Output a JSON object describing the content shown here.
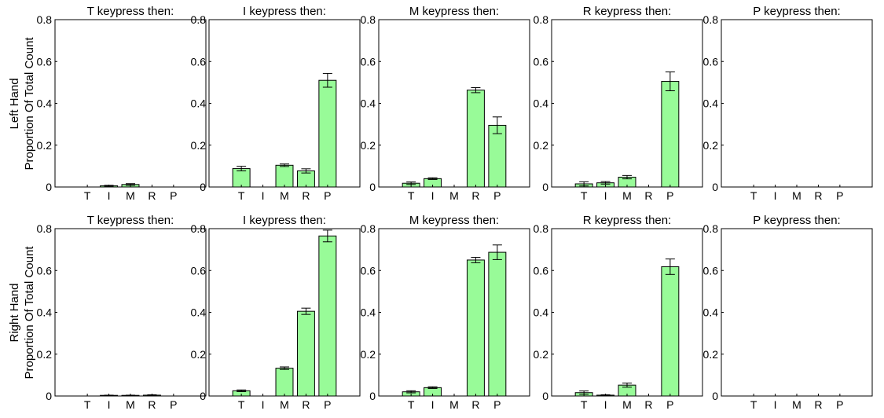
{
  "ylabels": {
    "left": [
      "Left Hand",
      "Proportion Of Total Count"
    ],
    "right": [
      "Right Hand",
      "Proportion Of Total Count"
    ]
  },
  "chart_data": [
    {
      "type": "bar",
      "hand": "Left Hand",
      "title": "T keypress then:",
      "categories": [
        "T",
        "I",
        "M",
        "R",
        "P"
      ],
      "values": [
        0,
        0.006,
        0.012,
        0,
        0
      ],
      "errors": [
        0,
        0.002,
        0.004,
        0,
        0
      ],
      "ylim": [
        0,
        0.8
      ],
      "yticks": [
        0,
        0.2,
        0.4,
        0.6,
        0.8
      ],
      "ytick_labels": [
        "0",
        "0.2",
        "0.4",
        "0.6",
        "0.8"
      ],
      "bar_color": "#98fb98",
      "edge_color": "#000000",
      "grid": false
    },
    {
      "type": "bar",
      "hand": "Left Hand",
      "title": "I keypress then:",
      "categories": [
        "T",
        "I",
        "M",
        "R",
        "P"
      ],
      "values": [
        0.088,
        0,
        0.104,
        0.077,
        0.51
      ],
      "errors": [
        0.011,
        0,
        0.006,
        0.01,
        0.033
      ],
      "ylim": [
        0,
        0.8
      ],
      "yticks": [
        0,
        0.2,
        0.4,
        0.6,
        0.8
      ],
      "ytick_labels": [
        "0",
        "0.2",
        "0.4",
        "0.6",
        "0.8"
      ],
      "bar_color": "#98fb98",
      "edge_color": "#000000",
      "grid": false
    },
    {
      "type": "bar",
      "hand": "Left Hand",
      "title": "M keypress then:",
      "categories": [
        "T",
        "I",
        "M",
        "R",
        "P"
      ],
      "values": [
        0.018,
        0.04,
        0,
        0.463,
        0.295
      ],
      "errors": [
        0.006,
        0.004,
        0,
        0.012,
        0.04
      ],
      "ylim": [
        0,
        0.8
      ],
      "yticks": [
        0,
        0.2,
        0.4,
        0.6,
        0.8
      ],
      "ytick_labels": [
        "0",
        "0.2",
        "0.4",
        "0.6",
        "0.8"
      ],
      "bar_color": "#98fb98",
      "edge_color": "#000000",
      "grid": false
    },
    {
      "type": "bar",
      "hand": "Left Hand",
      "title": "R keypress then:",
      "categories": [
        "T",
        "I",
        "M",
        "R",
        "P"
      ],
      "values": [
        0.015,
        0.02,
        0.047,
        0,
        0.505
      ],
      "errors": [
        0.01,
        0.006,
        0.008,
        0,
        0.045
      ],
      "ylim": [
        0,
        0.8
      ],
      "yticks": [
        0,
        0.2,
        0.4,
        0.6,
        0.8
      ],
      "ytick_labels": [
        "0",
        "0.2",
        "0.4",
        "0.6",
        "0.8"
      ],
      "bar_color": "#98fb98",
      "edge_color": "#000000",
      "grid": false
    },
    {
      "type": "bar",
      "hand": "Left Hand",
      "title": "P keypress then:",
      "categories": [
        "T",
        "I",
        "M",
        "R",
        "P"
      ],
      "values": [
        0,
        0,
        0,
        0,
        0
      ],
      "errors": [
        0,
        0,
        0,
        0,
        0
      ],
      "ylim": [
        0,
        0.8
      ],
      "yticks": [
        0,
        0.2,
        0.4,
        0.6,
        0.8
      ],
      "ytick_labels": [
        "0",
        "0.2",
        "0.4",
        "0.6",
        "0.8"
      ],
      "bar_color": "#98fb98",
      "edge_color": "#000000",
      "grid": false
    },
    {
      "type": "bar",
      "hand": "Right Hand",
      "title": "T keypress then:",
      "categories": [
        "T",
        "I",
        "M",
        "R",
        "P"
      ],
      "values": [
        0,
        0.003,
        0.003,
        0.004,
        0
      ],
      "errors": [
        0,
        0.001,
        0.001,
        0.002,
        0
      ],
      "ylim": [
        0,
        0.8
      ],
      "yticks": [
        0,
        0.2,
        0.4,
        0.6,
        0.8
      ],
      "ytick_labels": [
        "0",
        "0.2",
        "0.4",
        "0.6",
        "0.8"
      ],
      "bar_color": "#98fb98",
      "edge_color": "#000000",
      "grid": false
    },
    {
      "type": "bar",
      "hand": "Right Hand",
      "title": "I keypress then:",
      "categories": [
        "T",
        "I",
        "M",
        "R",
        "P"
      ],
      "values": [
        0.025,
        0,
        0.133,
        0.405,
        0.765
      ],
      "errors": [
        0.004,
        0,
        0.006,
        0.015,
        0.028
      ],
      "ylim": [
        0,
        0.8
      ],
      "yticks": [
        0,
        0.2,
        0.4,
        0.6,
        0.8
      ],
      "ytick_labels": [
        "0",
        "0.2",
        "0.4",
        "0.6",
        "0.8"
      ],
      "bar_color": "#98fb98",
      "edge_color": "#000000",
      "grid": false
    },
    {
      "type": "bar",
      "hand": "Right Hand",
      "title": "M keypress then:",
      "categories": [
        "T",
        "I",
        "M",
        "R",
        "P"
      ],
      "values": [
        0.02,
        0.04,
        0,
        0.65,
        0.687
      ],
      "errors": [
        0.005,
        0.004,
        0,
        0.013,
        0.035
      ],
      "ylim": [
        0,
        0.8
      ],
      "yticks": [
        0,
        0.2,
        0.4,
        0.6,
        0.8
      ],
      "ytick_labels": [
        "0",
        "0.2",
        "0.4",
        "0.6",
        "0.8"
      ],
      "bar_color": "#98fb98",
      "edge_color": "#000000",
      "grid": false
    },
    {
      "type": "bar",
      "hand": "Right Hand",
      "title": "R keypress then:",
      "categories": [
        "T",
        "I",
        "M",
        "R",
        "P"
      ],
      "values": [
        0.016,
        0.004,
        0.052,
        0,
        0.618
      ],
      "errors": [
        0.008,
        0.002,
        0.01,
        0,
        0.037
      ],
      "ylim": [
        0,
        0.8
      ],
      "yticks": [
        0,
        0.2,
        0.4,
        0.6,
        0.8
      ],
      "ytick_labels": [
        "0",
        "0.2",
        "0.4",
        "0.6",
        "0.8"
      ],
      "bar_color": "#98fb98",
      "edge_color": "#000000",
      "grid": false
    },
    {
      "type": "bar",
      "hand": "Right Hand",
      "title": "P keypress then:",
      "categories": [
        "T",
        "I",
        "M",
        "R",
        "P"
      ],
      "values": [
        0,
        0,
        0,
        0,
        0
      ],
      "errors": [
        0,
        0,
        0,
        0,
        0
      ],
      "ylim": [
        0,
        0.8
      ],
      "yticks": [
        0,
        0.2,
        0.4,
        0.6,
        0.8
      ],
      "ytick_labels": [
        "0",
        "0.2",
        "0.4",
        "0.6",
        "0.8"
      ],
      "bar_color": "#98fb98",
      "edge_color": "#000000",
      "grid": false
    }
  ]
}
